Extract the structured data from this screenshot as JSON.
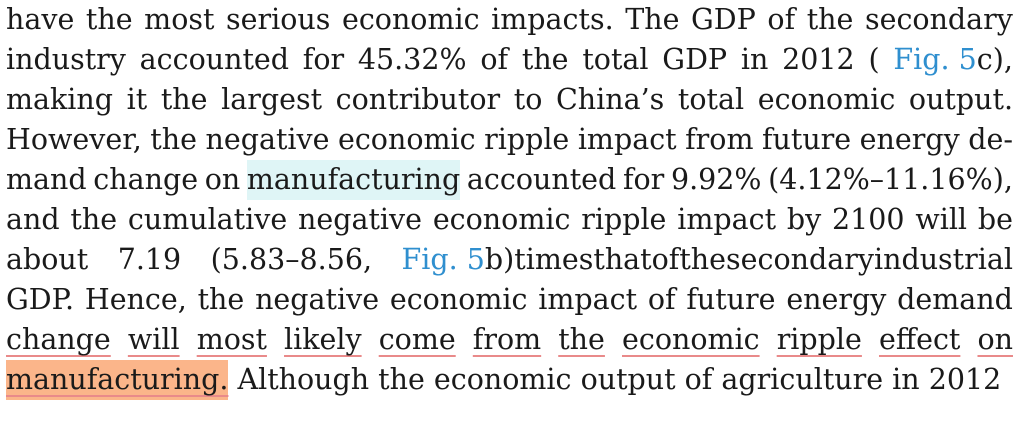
{
  "paragraph": {
    "l1": {
      "a": "have the most serious economic impacts. The GDP of the secondary"
    },
    "l2": {
      "a": "industry accounted for 45.32% of the total GDP in 2012 (",
      "link": "Fig. 5",
      "b": "c),"
    },
    "l3": {
      "a": "making it the largest contributor to China’s total economic output."
    },
    "l4": {
      "a": "However, the negative economic ripple impact from future energy de-"
    },
    "l5": {
      "a": "mand change on ",
      "highlight": "manufacturing",
      "b": " accounted for 9.92% (4.12%–11.16%),"
    },
    "l6": {
      "a": "and the cumulative negative economic ripple impact by 2100 will be"
    },
    "l7": {
      "a": "about 7.19 (5.83–8.56, ",
      "link": "Fig. 5",
      "b": "b) times that of the secondary industrial"
    },
    "l8": {
      "a": "GDP. ",
      "underline": "Hence, the negative economic impact of future energy demand"
    },
    "l9": {
      "underline": "change will most likely come from the economic ripple effect on"
    },
    "l10": {
      "highlight": "manufacturing.",
      "b": " Although the economic output of agriculture in 2012"
    }
  },
  "colors": {
    "link": "#2f8fcf",
    "cyan_highlight": "#dff5f6",
    "orange_highlight": "#fbb58a",
    "underline": "#e98a8a"
  }
}
